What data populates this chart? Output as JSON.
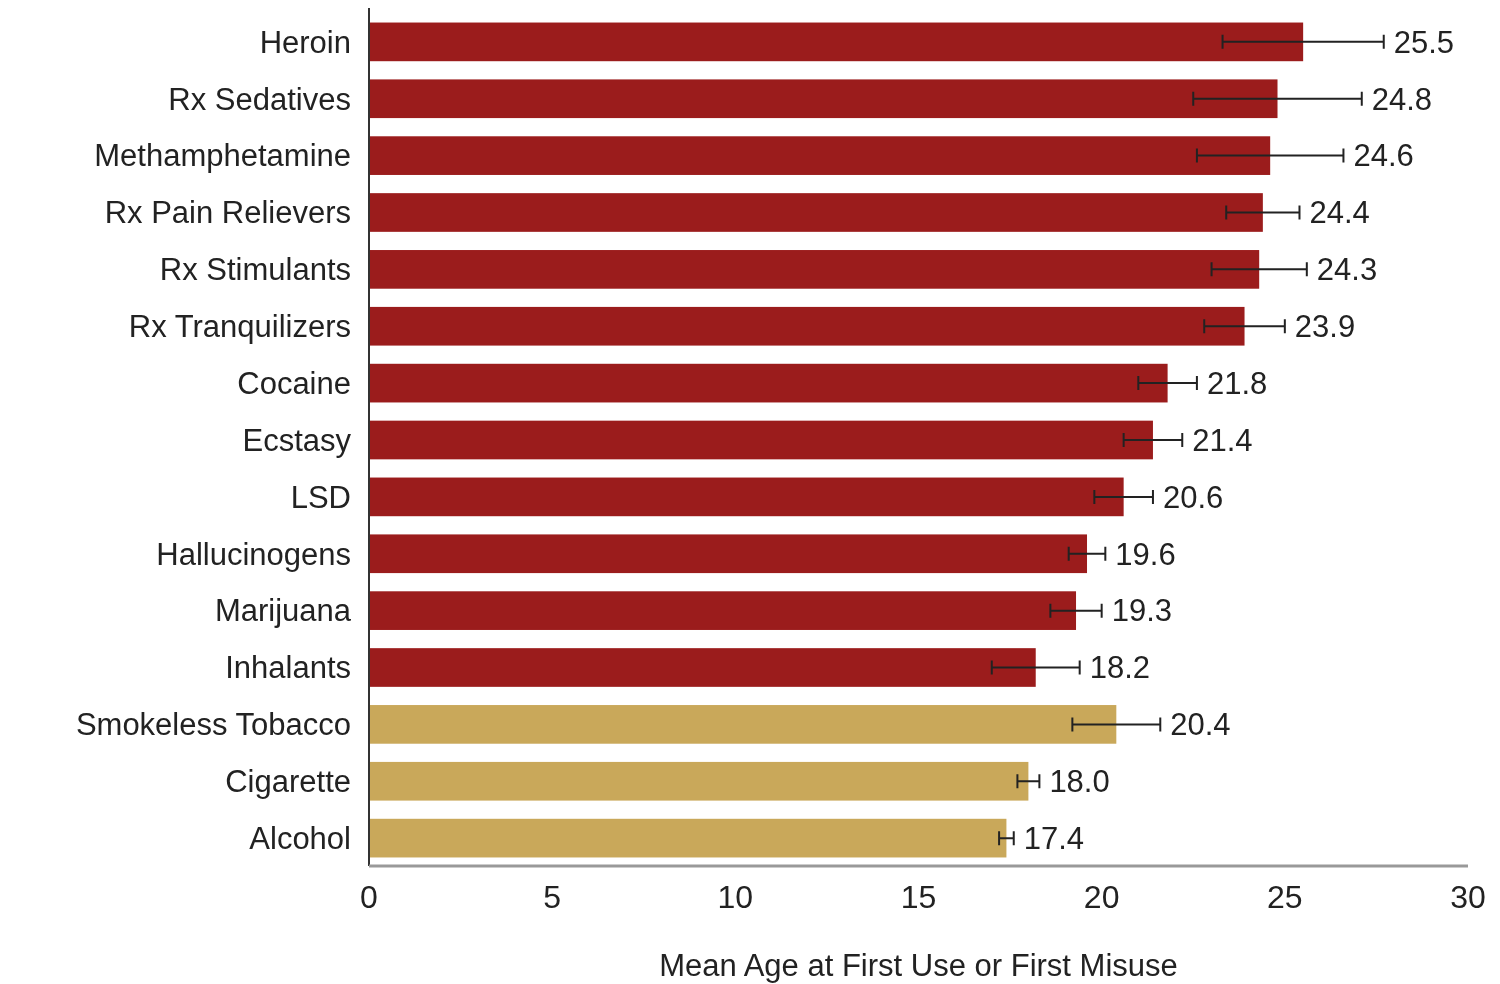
{
  "chart_data": {
    "type": "bar",
    "orientation": "horizontal",
    "xlabel": "Mean Age at First Use or First Misuse",
    "categories": [
      "Heroin",
      "Rx Sedatives",
      "Methamphetamine",
      "Rx Pain Relievers",
      "Rx Stimulants",
      "Rx Tranquilizers",
      "Cocaine",
      "Ecstasy",
      "LSD",
      "Hallucinogens",
      "Marijuana",
      "Inhalants",
      "Smokeless Tobacco",
      "Cigarette",
      "Alcohol"
    ],
    "values": [
      25.5,
      24.8,
      24.6,
      24.4,
      24.3,
      23.9,
      21.8,
      21.4,
      20.6,
      19.6,
      19.3,
      18.2,
      20.4,
      18.0,
      17.4
    ],
    "value_labels": [
      "25.5",
      "24.8",
      "24.6",
      "24.4",
      "24.3",
      "23.9",
      "21.8",
      "21.4",
      "20.6",
      "19.6",
      "19.3",
      "18.2",
      "20.4",
      "18.0",
      "17.4"
    ],
    "errors": [
      2.2,
      2.3,
      2.0,
      1.0,
      1.3,
      1.1,
      0.8,
      0.8,
      0.8,
      0.5,
      0.7,
      1.2,
      1.2,
      0.3,
      0.2
    ],
    "colors": [
      "#9b1c1c",
      "#9b1c1c",
      "#9b1c1c",
      "#9b1c1c",
      "#9b1c1c",
      "#9b1c1c",
      "#9b1c1c",
      "#9b1c1c",
      "#9b1c1c",
      "#9b1c1c",
      "#9b1c1c",
      "#9b1c1c",
      "#c9a85a",
      "#c9a85a",
      "#c9a85a"
    ],
    "xlim": [
      0,
      30
    ],
    "xticks": [
      0,
      5,
      10,
      15,
      20,
      25,
      30
    ],
    "grid": false
  }
}
